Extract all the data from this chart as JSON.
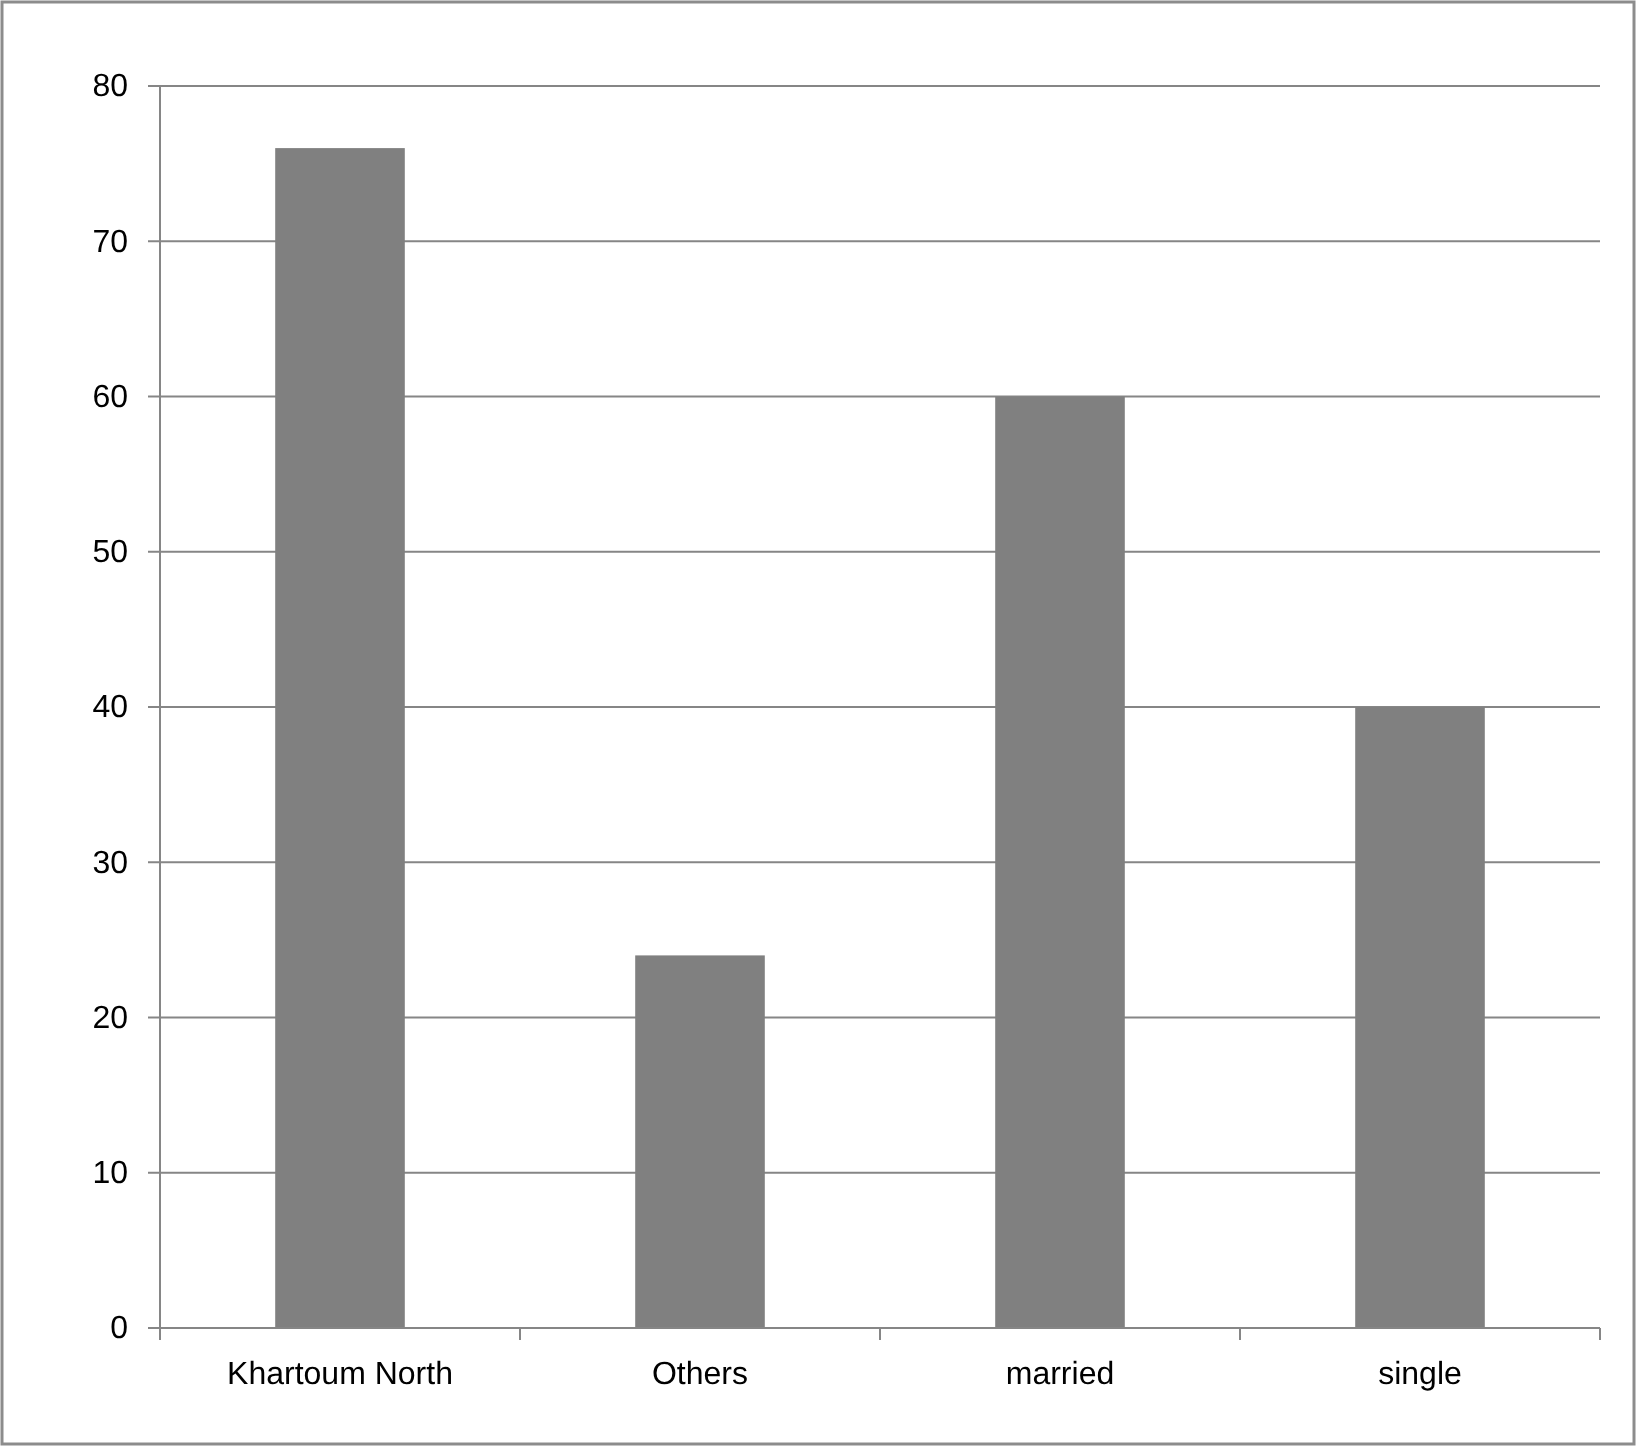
{
  "chart_data": {
    "type": "bar",
    "categories": [
      "Khartoum North",
      "Others",
      "married",
      "single"
    ],
    "values": [
      76,
      24,
      60,
      40
    ],
    "color": "#808080",
    "ylim": [
      0,
      80
    ],
    "yticks": [
      0,
      10,
      20,
      30,
      40,
      50,
      60,
      70,
      80
    ],
    "grid": "y"
  }
}
